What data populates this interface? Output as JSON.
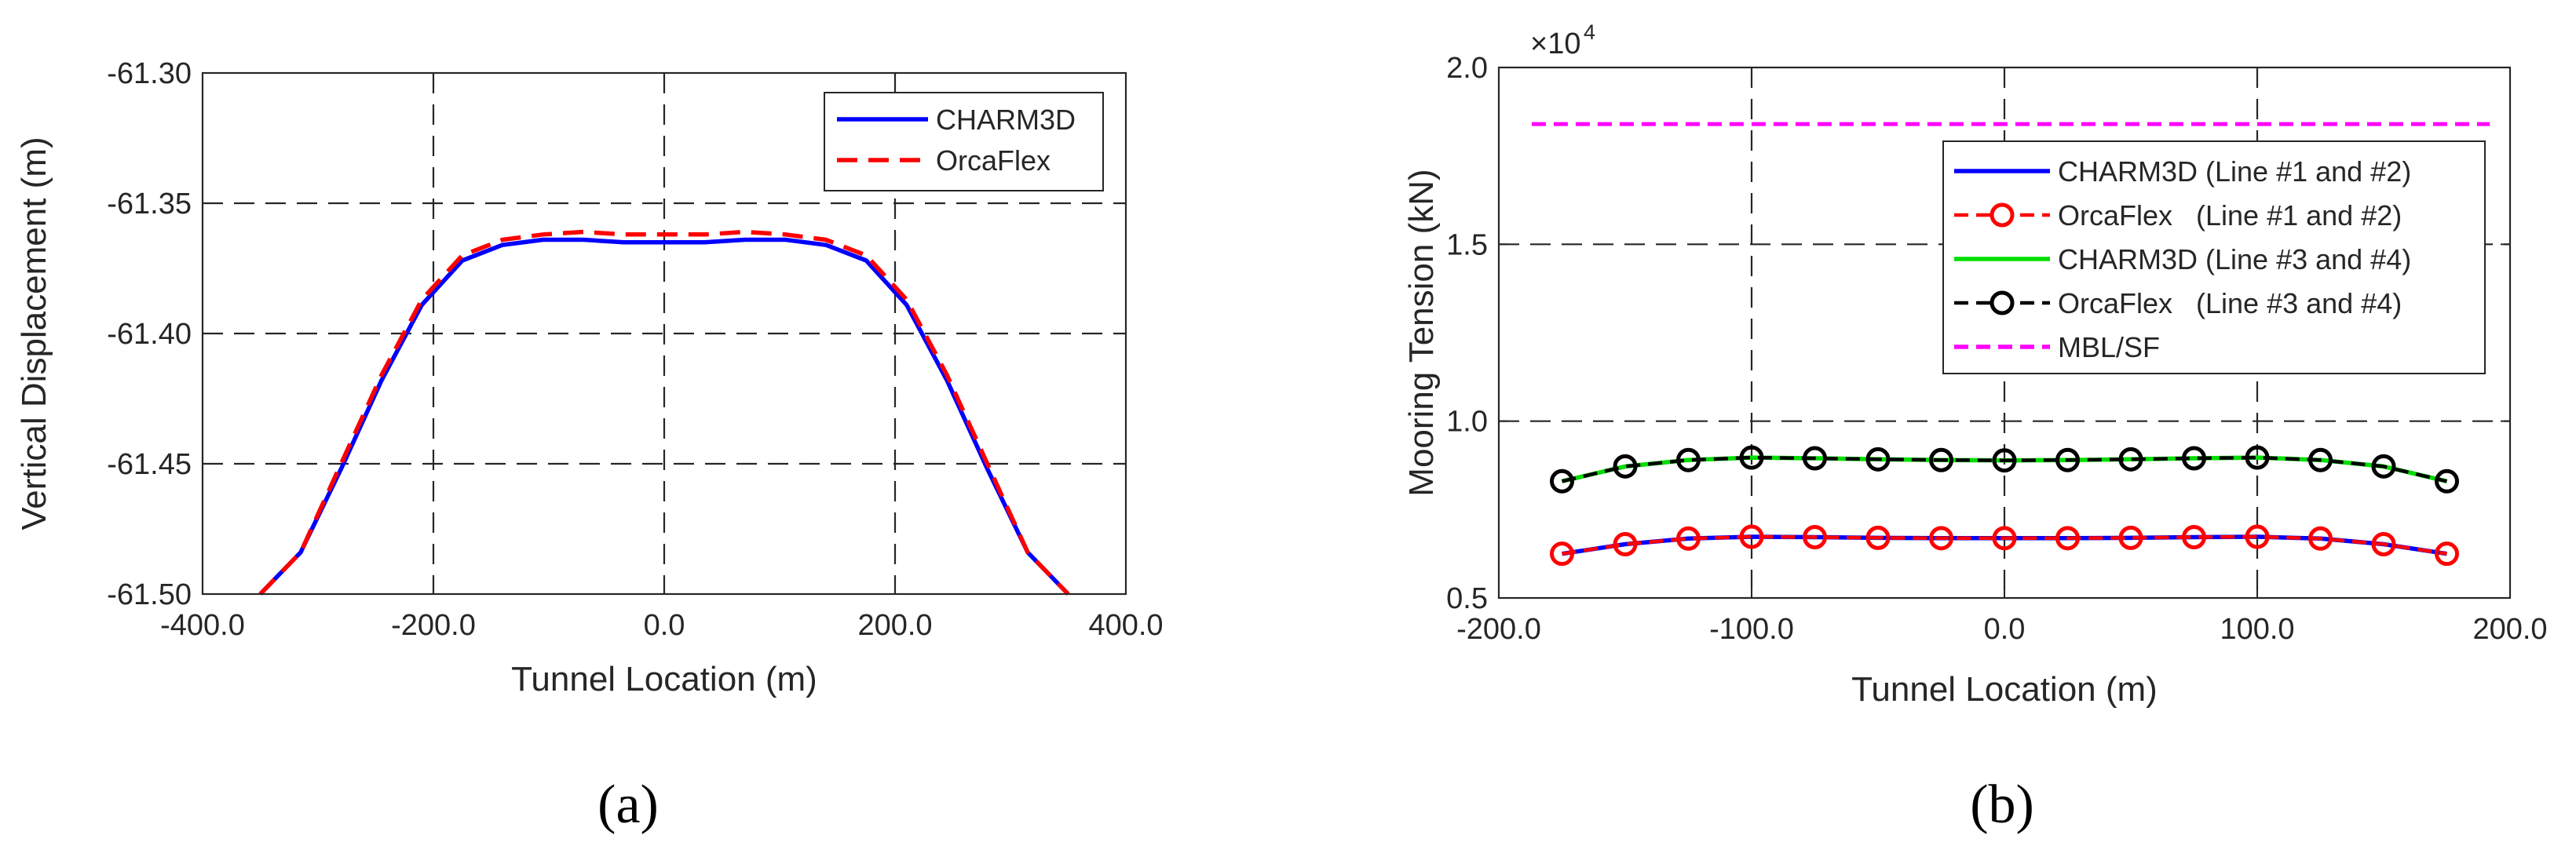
{
  "chart_data": [
    {
      "type": "line",
      "panel_label": "(a)",
      "xlabel": "Tunnel Location (m)",
      "ylabel": "Vertical Displacement (m)",
      "xlim": [
        -400,
        400
      ],
      "ylim": [
        -61.5,
        -61.3
      ],
      "x_ticks": [
        -400,
        -200,
        0,
        200,
        400
      ],
      "x_tick_labels": [
        "-400.0",
        "-200.0",
        "0.0",
        "200.0",
        "400.0"
      ],
      "y_ticks": [
        -61.5,
        -61.45,
        -61.4,
        -61.35,
        -61.3
      ],
      "y_tick_labels": [
        "-61.50",
        "-61.45",
        "-61.40",
        "-61.35",
        "-61.30"
      ],
      "grid": true,
      "legend_position": "top-right",
      "series": [
        {
          "name": "CHARM3D",
          "color": "#0000ff",
          "style": "solid",
          "x": [
            -350,
            -315,
            -280,
            -245,
            -210,
            -175,
            -140,
            -105,
            -70,
            -35,
            0,
            35,
            70,
            105,
            140,
            175,
            210,
            245,
            280,
            315,
            350
          ],
          "y": [
            -61.5,
            -61.484,
            -61.452,
            -61.418,
            -61.389,
            -61.372,
            -61.366,
            -61.364,
            -61.364,
            -61.365,
            -61.365,
            -61.365,
            -61.364,
            -61.364,
            -61.366,
            -61.372,
            -61.389,
            -61.418,
            -61.452,
            -61.484,
            -61.5
          ]
        },
        {
          "name": "OrcaFlex",
          "color": "#ff0000",
          "style": "dashed",
          "x": [
            -350,
            -315,
            -280,
            -245,
            -210,
            -175,
            -140,
            -105,
            -70,
            -35,
            0,
            35,
            70,
            105,
            140,
            175,
            210,
            245,
            280,
            315,
            350
          ],
          "y": [
            -61.5,
            -61.484,
            -61.45,
            -61.416,
            -61.387,
            -61.37,
            -61.364,
            -61.362,
            -61.361,
            -61.362,
            -61.362,
            -61.362,
            -61.361,
            -61.362,
            -61.364,
            -61.37,
            -61.387,
            -61.416,
            -61.45,
            -61.484,
            -61.5
          ]
        }
      ]
    },
    {
      "type": "line",
      "panel_label": "(b)",
      "xlabel": "Tunnel Location (m)",
      "ylabel": "Mooring Tension (kN)",
      "y_multiplier": "×10",
      "y_exponent": "4",
      "xlim": [
        -200,
        200
      ],
      "ylim": [
        0.5,
        2.0
      ],
      "x_ticks": [
        -200,
        -100,
        0,
        100,
        200
      ],
      "x_tick_labels": [
        "-200.0",
        "-100.0",
        "0.0",
        "100.0",
        "200.0"
      ],
      "y_ticks": [
        0.5,
        1.0,
        1.5,
        2.0
      ],
      "y_tick_labels": [
        "0.5",
        "1.0",
        "1.5",
        "2.0"
      ],
      "grid": true,
      "legend_position": "top-right",
      "series": [
        {
          "name": "CHARM3D (Line #1 and #2)",
          "color": "#0000ff",
          "style": "solid",
          "marker": "none",
          "x": [
            -175,
            -150,
            -125,
            -100,
            -75,
            -50,
            -25,
            0,
            25,
            50,
            75,
            100,
            125,
            150,
            175
          ],
          "y": [
            0.625,
            0.652,
            0.668,
            0.673,
            0.672,
            0.67,
            0.669,
            0.669,
            0.669,
            0.67,
            0.672,
            0.673,
            0.668,
            0.652,
            0.625
          ]
        },
        {
          "name": "OrcaFlex   (Line #1 and #2)",
          "color": "#ff0000",
          "style": "dashed",
          "marker": "circle",
          "x": [
            -175,
            -150,
            -125,
            -100,
            -75,
            -50,
            -25,
            0,
            25,
            50,
            75,
            100,
            125,
            150,
            175
          ],
          "y": [
            0.625,
            0.652,
            0.668,
            0.673,
            0.672,
            0.67,
            0.669,
            0.669,
            0.669,
            0.67,
            0.672,
            0.673,
            0.668,
            0.652,
            0.625
          ]
        },
        {
          "name": "CHARM3D (Line #3 and #4)",
          "color": "#00dd00",
          "style": "solid",
          "marker": "none",
          "x": [
            -175,
            -150,
            -125,
            -100,
            -75,
            -50,
            -25,
            0,
            25,
            50,
            75,
            100,
            125,
            150,
            175
          ],
          "y": [
            0.83,
            0.872,
            0.89,
            0.897,
            0.895,
            0.892,
            0.89,
            0.889,
            0.89,
            0.892,
            0.895,
            0.897,
            0.89,
            0.872,
            0.83
          ]
        },
        {
          "name": "OrcaFlex   (Line #3 and #4)",
          "color": "#000000",
          "style": "dashed",
          "marker": "circle",
          "x": [
            -175,
            -150,
            -125,
            -100,
            -75,
            -50,
            -25,
            0,
            25,
            50,
            75,
            100,
            125,
            150,
            175
          ],
          "y": [
            0.83,
            0.872,
            0.89,
            0.897,
            0.895,
            0.892,
            0.89,
            0.889,
            0.89,
            0.892,
            0.895,
            0.897,
            0.89,
            0.872,
            0.83
          ]
        },
        {
          "name": "MBL/SF",
          "color": "#ff00ff",
          "style": "dashed",
          "marker": "none",
          "x": [
            -187,
            192
          ],
          "y": [
            1.84,
            1.84
          ]
        }
      ]
    }
  ]
}
